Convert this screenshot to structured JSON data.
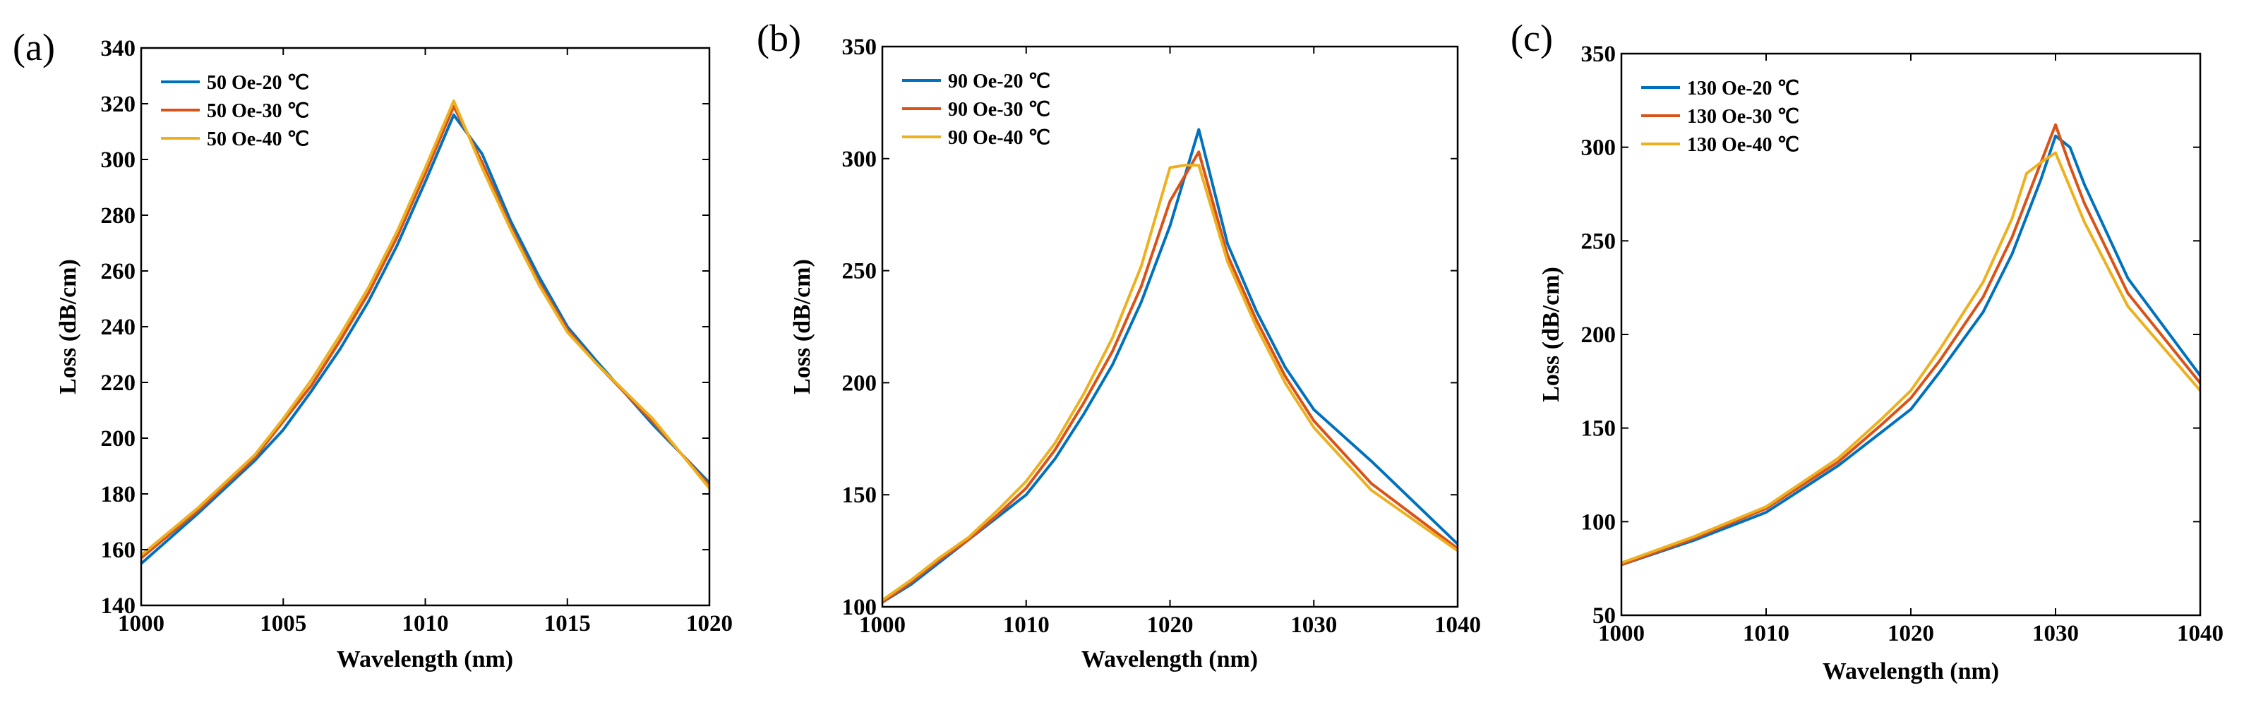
{
  "chart_data": [
    {
      "type": "line",
      "panel_label": "(a)",
      "xlabel": "Wavelength (nm)",
      "ylabel": "Loss (dB/cm)",
      "xlim": [
        1000,
        1020
      ],
      "ylim": [
        140,
        340
      ],
      "xticks": [
        1000,
        1005,
        1010,
        1015,
        1020
      ],
      "yticks": [
        140,
        160,
        180,
        200,
        220,
        240,
        260,
        280,
        300,
        320,
        340
      ],
      "legend_position": "top-left",
      "series": [
        {
          "name": "50 Oe-20 ℃",
          "color": "#0072BD",
          "x": [
            1000,
            1002,
            1004,
            1005,
            1006,
            1007,
            1008,
            1009,
            1010,
            1011,
            1012,
            1013,
            1014,
            1015,
            1016,
            1018,
            1020
          ],
          "y": [
            155,
            173,
            192,
            203,
            217,
            232,
            249,
            269,
            292,
            316,
            302,
            278,
            258,
            240,
            228,
            205,
            184
          ]
        },
        {
          "name": "50 Oe-30 ℃",
          "color": "#D95319",
          "x": [
            1000,
            1002,
            1004,
            1005,
            1006,
            1007,
            1008,
            1009,
            1010,
            1011,
            1012,
            1013,
            1014,
            1015,
            1016,
            1018,
            1020
          ],
          "y": [
            157,
            174,
            193,
            206,
            219,
            235,
            252,
            272,
            295,
            319,
            299,
            276,
            256,
            239,
            227,
            206,
            183
          ]
        },
        {
          "name": "50 Oe-40 ℃",
          "color": "#EDB120",
          "x": [
            1000,
            1002,
            1004,
            1005,
            1006,
            1007,
            1008,
            1009,
            1010,
            1011,
            1012,
            1013,
            1014,
            1015,
            1016,
            1018,
            1020
          ],
          "y": [
            158,
            175,
            194,
            207,
            221,
            237,
            254,
            274,
            297,
            321,
            297,
            275,
            255,
            238,
            227,
            207,
            182
          ]
        }
      ]
    },
    {
      "type": "line",
      "panel_label": "(b)",
      "xlabel": "Wavelength (nm)",
      "ylabel": "Loss (dB/cm)",
      "xlim": [
        1000,
        1040
      ],
      "ylim": [
        100,
        350
      ],
      "xticks": [
        1000,
        1010,
        1020,
        1030,
        1040
      ],
      "yticks": [
        100,
        150,
        200,
        250,
        300,
        350
      ],
      "legend_position": "top-left",
      "series": [
        {
          "name": "90 Oe-20 ℃",
          "color": "#0072BD",
          "x": [
            1000,
            1002,
            1004,
            1006,
            1008,
            1010,
            1012,
            1014,
            1016,
            1018,
            1020,
            1022,
            1024,
            1026,
            1028,
            1030,
            1034,
            1040
          ],
          "y": [
            102,
            110,
            120,
            130,
            140,
            150,
            166,
            186,
            208,
            236,
            270,
            313,
            262,
            232,
            207,
            188,
            165,
            128
          ]
        },
        {
          "name": "90 Oe-30 ℃",
          "color": "#D95319",
          "x": [
            1000,
            1002,
            1004,
            1006,
            1008,
            1010,
            1012,
            1014,
            1016,
            1018,
            1020,
            1021,
            1022,
            1024,
            1026,
            1028,
            1030,
            1034,
            1040
          ],
          "y": [
            102,
            111,
            121,
            130,
            141,
            153,
            170,
            191,
            214,
            243,
            281,
            292,
            303,
            257,
            228,
            203,
            183,
            155,
            126
          ]
        },
        {
          "name": "90 Oe-40 ℃",
          "color": "#EDB120",
          "x": [
            1000,
            1002,
            1004,
            1006,
            1008,
            1010,
            1012,
            1014,
            1016,
            1018,
            1020,
            1021,
            1022,
            1024,
            1026,
            1028,
            1030,
            1034,
            1040
          ],
          "y": [
            103,
            112,
            122,
            131,
            143,
            156,
            173,
            195,
            220,
            252,
            296,
            297,
            297,
            254,
            225,
            200,
            180,
            152,
            125
          ]
        }
      ]
    },
    {
      "type": "line",
      "panel_label": "(c)",
      "xlabel": "Wavelength (nm)",
      "ylabel": "Loss (dB/cm)",
      "xlim": [
        1000,
        1040
      ],
      "ylim": [
        50,
        350
      ],
      "xticks": [
        1000,
        1010,
        1020,
        1030,
        1040
      ],
      "yticks": [
        50,
        100,
        150,
        200,
        250,
        300,
        350
      ],
      "legend_position": "top-left",
      "series": [
        {
          "name": "130 Oe-20 ℃",
          "color": "#0072BD",
          "x": [
            1000,
            1005,
            1010,
            1015,
            1018,
            1020,
            1022,
            1025,
            1027,
            1029,
            1030,
            1031,
            1032,
            1035,
            1040
          ],
          "y": [
            77,
            90,
            105,
            130,
            148,
            160,
            180,
            212,
            243,
            283,
            306,
            300,
            280,
            230,
            178
          ]
        },
        {
          "name": "130 Oe-30 ℃",
          "color": "#D95319",
          "x": [
            1000,
            1005,
            1010,
            1015,
            1018,
            1020,
            1022,
            1025,
            1027,
            1029,
            1030,
            1031,
            1032,
            1035,
            1040
          ],
          "y": [
            77,
            91,
            107,
            132,
            152,
            166,
            186,
            220,
            252,
            292,
            312,
            290,
            270,
            222,
            174
          ]
        },
        {
          "name": "130 Oe-40 ℃",
          "color": "#EDB120",
          "x": [
            1000,
            1005,
            1010,
            1015,
            1018,
            1020,
            1022,
            1025,
            1027,
            1028,
            1029,
            1030,
            1032,
            1035,
            1040
          ],
          "y": [
            78,
            92,
            108,
            134,
            155,
            170,
            192,
            228,
            262,
            286,
            292,
            297,
            260,
            215,
            170
          ]
        }
      ]
    }
  ]
}
